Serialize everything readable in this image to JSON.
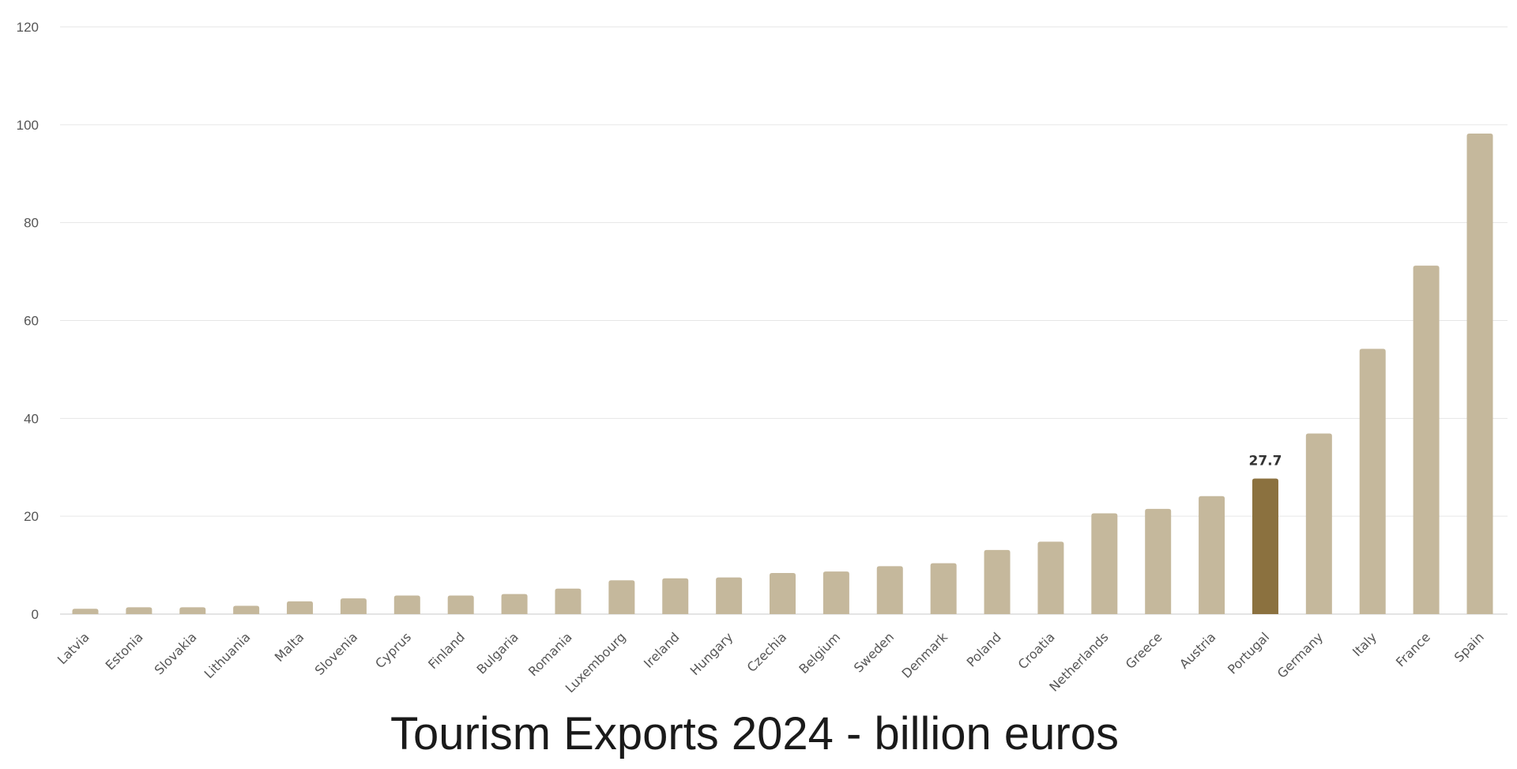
{
  "chart_data": {
    "type": "bar",
    "title": "Tourism Exports 2024 - billion euros",
    "xlabel": "",
    "ylabel": "",
    "ylim": [
      0,
      120
    ],
    "yticks": [
      0,
      20,
      40,
      60,
      80,
      100,
      120
    ],
    "grid": true,
    "categories": [
      "Latvia",
      "Estonia",
      "Slovakia",
      "Lithuania",
      "Malta",
      "Slovenia",
      "Cyprus",
      "Finland",
      "Bulgaria",
      "Romania",
      "Luxembourg",
      "Ireland",
      "Hungary",
      "Czechia",
      "Belgium",
      "Sweden",
      "Denmark",
      "Poland",
      "Croatia",
      "Netherlands",
      "Greece",
      "Austria",
      "Portugal",
      "Germany",
      "Italy",
      "France",
      "Spain"
    ],
    "values": [
      1.1,
      1.4,
      1.4,
      1.7,
      2.6,
      3.2,
      3.8,
      3.8,
      4.1,
      5.2,
      6.9,
      7.3,
      7.5,
      8.4,
      8.7,
      9.8,
      10.4,
      13.1,
      14.8,
      20.6,
      21.5,
      24.1,
      27.7,
      36.9,
      54.2,
      71.2,
      98.2
    ],
    "highlight": {
      "category": "Portugal",
      "label": "27.7"
    },
    "colors": {
      "bar": "#c5b89c",
      "highlight": "#8b713f",
      "grid": "#e6e6e6"
    }
  }
}
